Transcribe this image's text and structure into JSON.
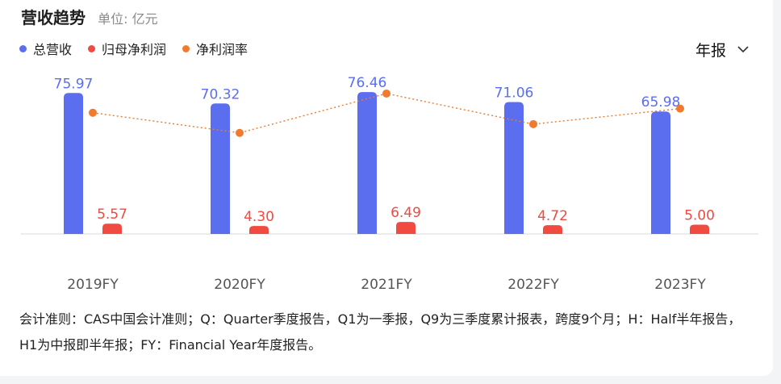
{
  "header": {
    "title": "营收趋势",
    "unit": "单位: 亿元"
  },
  "period_selector": {
    "label": "年报",
    "icon": "chevron-down-icon"
  },
  "chart_data": {
    "type": "bar",
    "categories": [
      "2019FY",
      "2020FY",
      "2021FY",
      "2022FY",
      "2023FY"
    ],
    "series": [
      {
        "name": "总营收",
        "type": "bar",
        "color": "#5b6ef0",
        "values": [
          75.97,
          70.32,
          76.46,
          71.06,
          65.98
        ]
      },
      {
        "name": "归母净利润",
        "type": "bar",
        "color": "#f04a41",
        "values": [
          5.57,
          4.3,
          6.49,
          4.72,
          5.0
        ]
      },
      {
        "name": "净利润率",
        "type": "line",
        "color": "#f07a2d",
        "values": [
          7.33,
          6.11,
          8.49,
          6.64,
          7.58
        ]
      }
    ],
    "ylim": [
      0,
      80
    ]
  },
  "note": "会计准则：CAS中国会计准则；Q：Quarter季度报告，Q1为一季报，Q9为三季度累计报表，跨度9个月；H：Half半年报告，H1为中报即半年报；FY：Financial Year年度报告。"
}
